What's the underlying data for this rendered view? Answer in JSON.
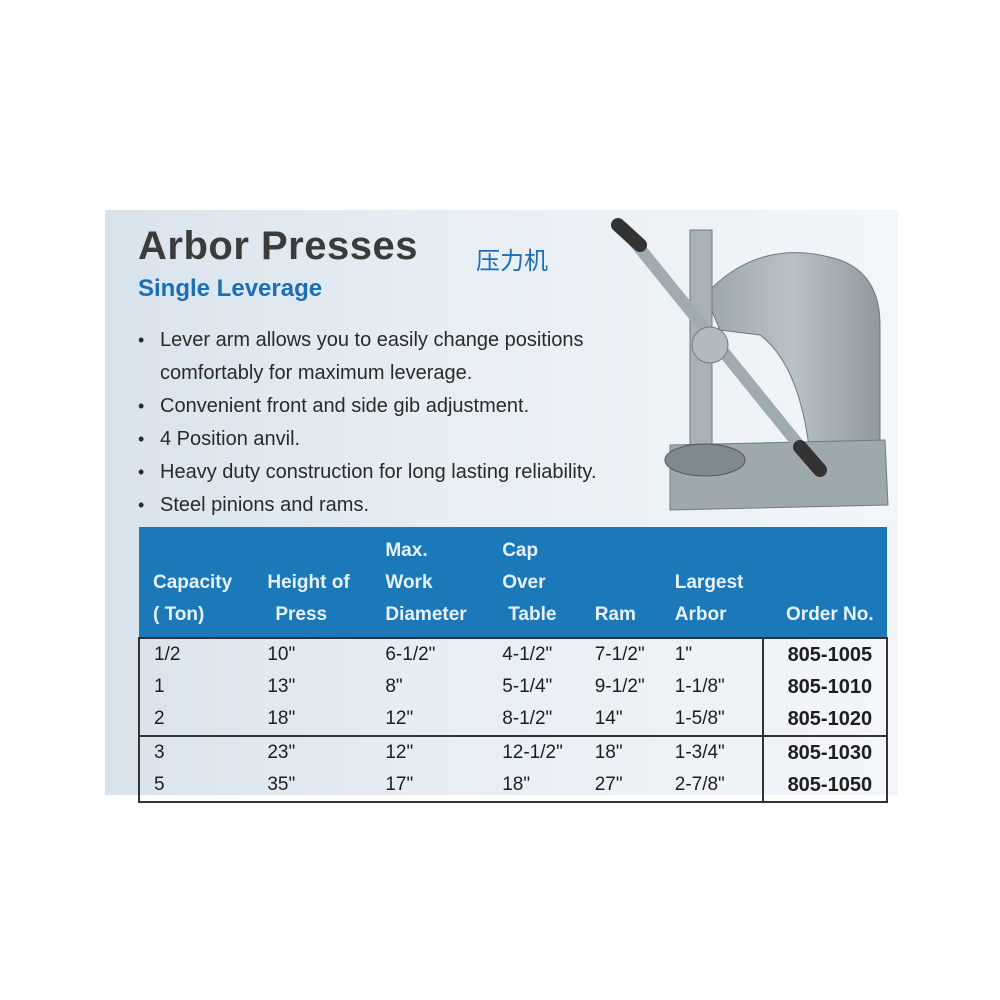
{
  "title": "Arbor Presses",
  "title_cn": "压力机",
  "subtitle": "Single Leverage",
  "bullets": [
    {
      "line1": "Lever arm allows you to easily change positions",
      "line2": "comfortably for maximum leverage."
    },
    {
      "line1": "Convenient front and side gib adjustment."
    },
    {
      "line1": "4 Position anvil."
    },
    {
      "line1": "Heavy duty construction for long lasting reliability."
    },
    {
      "line1": "Steel pinions and rams."
    }
  ],
  "table": {
    "headers": [
      {
        "l1": "",
        "l2": "Capacity",
        "l3": "( Ton)"
      },
      {
        "l1": "",
        "l2": "Height of",
        "l3": "Press"
      },
      {
        "l1": "Max.",
        "l2": "Work",
        "l3": "Diameter"
      },
      {
        "l1": "Cap",
        "l2": "Over",
        "l3": "Table"
      },
      {
        "l1": "",
        "l2": "",
        "l3": "Ram"
      },
      {
        "l1": "",
        "l2": "Largest",
        "l3": "Arbor"
      },
      {
        "l1": "",
        "l2": "",
        "l3": "Order No."
      }
    ],
    "rows": [
      [
        "1/2",
        "10\"",
        "6-1/2\"",
        "4-1/2\"",
        "7-1/2\"",
        "1\"",
        "805-1005"
      ],
      [
        "1",
        "13\"",
        "8\"",
        "5-1/4\"",
        "9-1/2\"",
        "1-1/8\"",
        "805-1010"
      ],
      [
        "2",
        "18\"",
        "12\"",
        "8-1/2\"",
        "14\"",
        "1-5/8\"",
        "805-1020"
      ],
      [
        "3",
        "23\"",
        "12\"",
        "12-1/2\"",
        "18\"",
        "1-3/4\"",
        "805-1030"
      ],
      [
        "5",
        "35\"",
        "17\"",
        "18\"",
        "27\"",
        "2-7/8\"",
        "805-1050"
      ]
    ]
  },
  "colors": {
    "accent": "#1a6fb5",
    "header_bg": "#1b79ba"
  }
}
